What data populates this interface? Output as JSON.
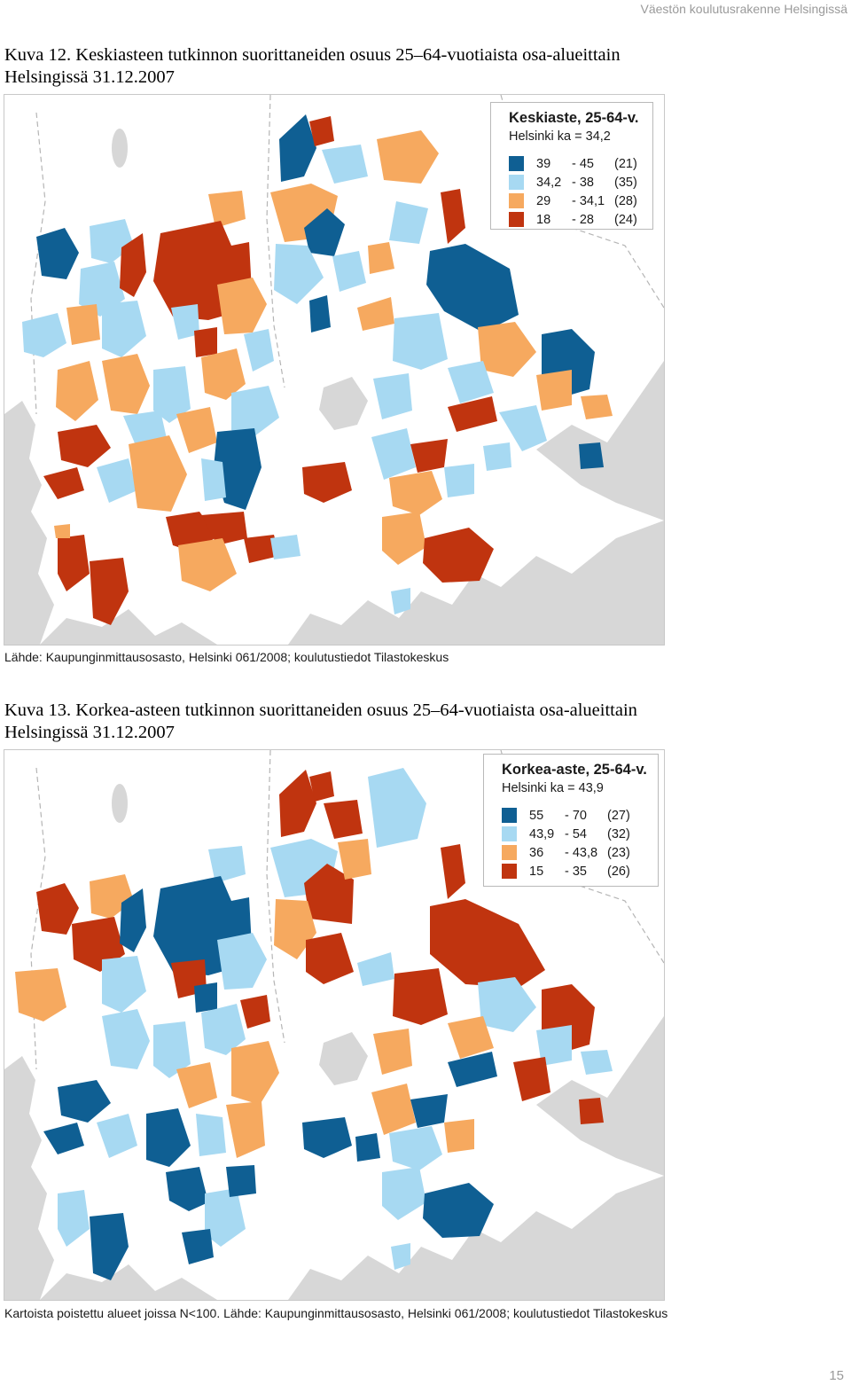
{
  "header": {
    "running_title": "Väestön koulutusrakenne Helsingissä"
  },
  "colors": {
    "dark_blue": "#0f5f93",
    "light_blue": "#a7d9f2",
    "orange": "#f6a95f",
    "red": "#c0340f",
    "land_gray": "#d7d7d7",
    "background_white": "#ffffff"
  },
  "figure12": {
    "caption_line1": "Kuva 12. Keskiasteen tutkinnon suorittaneiden osuus 25–64-vuotiaista osa-alueittain",
    "caption_line2": "Helsingissä 31.12.2007",
    "legend": {
      "title": "Keskiaste, 25-64-v.",
      "mean": "Helsinki ka = 34,2",
      "classes": [
        {
          "lo": "39",
          "dash": "- 45",
          "hi": "",
          "count": "(21)",
          "color": "#0f5f93"
        },
        {
          "lo": "34,2",
          "dash": "- 38",
          "hi": "",
          "count": "(35)",
          "color": "#a7d9f2"
        },
        {
          "lo": "29",
          "dash": "- 34,1",
          "hi": "",
          "count": "(28)",
          "color": "#f6a95f"
        },
        {
          "lo": "18",
          "dash": "- 28",
          "hi": "",
          "count": "(24)",
          "color": "#c0340f"
        }
      ]
    },
    "source": "Lähde: Kaupunginmittausosasto, Helsinki 061/2008; koulutustiedot Tilastokeskus"
  },
  "figure13": {
    "caption_line1": "Kuva 13. Korkea-asteen tutkinnon suorittaneiden osuus 25–64-vuotiaista osa-alueittain",
    "caption_line2": "Helsingissä 31.12.2007",
    "legend": {
      "title": "Korkea-aste, 25-64-v.",
      "mean": "Helsinki ka = 43,9",
      "classes": [
        {
          "lo": "55",
          "dash": "- 70",
          "hi": "",
          "count": "(27)",
          "color": "#0f5f93"
        },
        {
          "lo": "43,9",
          "dash": "- 54",
          "hi": "",
          "count": "(32)",
          "color": "#a7d9f2"
        },
        {
          "lo": "36",
          "dash": "- 43,8",
          "hi": "",
          "count": "(23)",
          "color": "#f6a95f"
        },
        {
          "lo": "15",
          "dash": "- 35",
          "hi": "",
          "count": "(26)",
          "color": "#c0340f"
        }
      ]
    },
    "source": "Kartoista poistettu alueet joissa N<100. Lähde: Kaupunginmittausosasto, Helsinki 061/2008; koulutustiedot Tilastokeskus"
  },
  "page": {
    "number": "15"
  }
}
